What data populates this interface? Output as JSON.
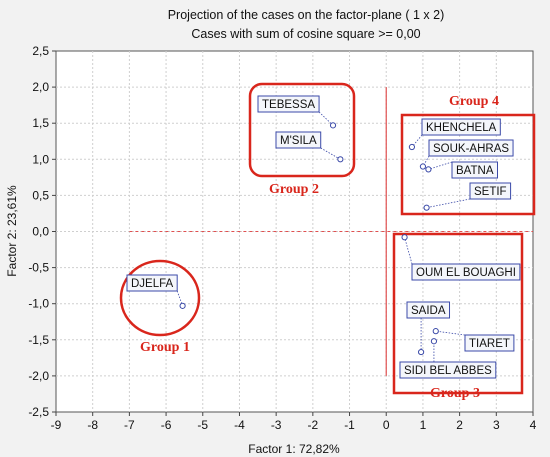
{
  "chart_data": {
    "type": "scatter",
    "title": "Projection of the cases on the factor-plane (  1 x   2)",
    "subtitle": "Cases with sum of cosine square >=  0,00",
    "xlabel": "Factor 1: 72,82%",
    "ylabel": "Factor 2: 23,61%",
    "xlim": [
      -9,
      4
    ],
    "ylim": [
      -2.5,
      2.5
    ],
    "x_ticks": [
      "-9",
      "-8",
      "-7",
      "-6",
      "-5",
      "-4",
      "-3",
      "-2",
      "-1",
      "0",
      "1",
      "2",
      "3",
      "4"
    ],
    "y_ticks": [
      "2,5",
      "2,0",
      "1,5",
      "1,0",
      "0,5",
      "0,0",
      "-0,5",
      "-1,0",
      "-1,5",
      "-2,0",
      "-2,5"
    ],
    "grid": true,
    "points": [
      {
        "label": "TEBESSA",
        "x": -1.45,
        "y": 1.47
      },
      {
        "label": "M'SILA",
        "x": -1.25,
        "y": 1.0
      },
      {
        "label": "KHENCHELA",
        "x": 0.7,
        "y": 1.17
      },
      {
        "label": "SOUK-AHRAS",
        "x": 1.0,
        "y": 0.9
      },
      {
        "label": "BATNA",
        "x": 1.15,
        "y": 0.86
      },
      {
        "label": "SETIF",
        "x": 1.1,
        "y": 0.33
      },
      {
        "label": "OUM EL BOUAGHI",
        "x": 0.5,
        "y": -0.08
      },
      {
        "label": "DJELFA",
        "x": -5.55,
        "y": -1.03
      },
      {
        "label": "SAIDA",
        "x": 0.95,
        "y": -1.67
      },
      {
        "label": "TIARET",
        "x": 1.35,
        "y": -1.38
      },
      {
        "label": "SIDI BEL ABBES",
        "x": 1.3,
        "y": -1.52
      }
    ],
    "annotations": [
      "Group 1",
      "Group 2",
      "Group 3",
      "Group 4"
    ]
  }
}
